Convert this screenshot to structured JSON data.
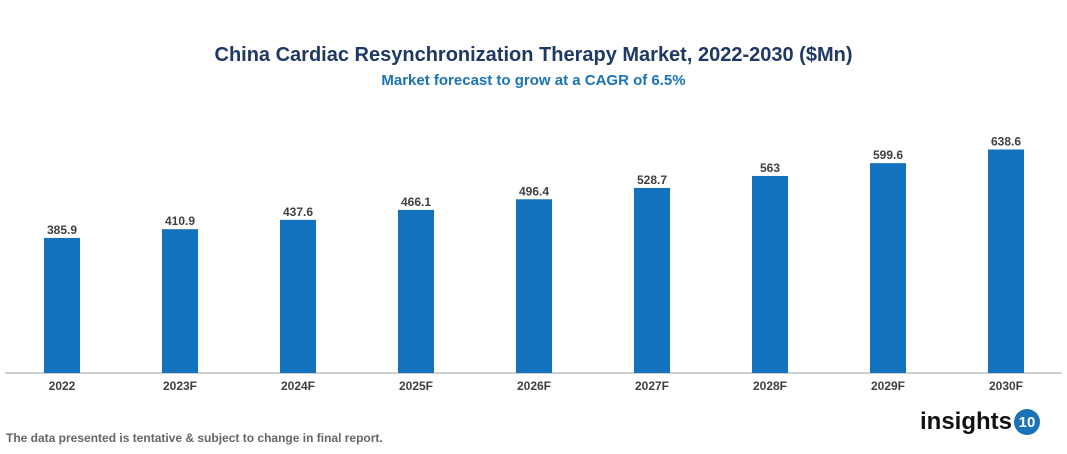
{
  "chart_data": {
    "type": "bar",
    "title": "China Cardiac Resynchronization Therapy Market, 2022-2030 ($Mn)",
    "subtitle": "Market forecast to grow at a CAGR of 6.5%",
    "categories": [
      "2022",
      "2023F",
      "2024F",
      "2025F",
      "2026F",
      "2027F",
      "2028F",
      "2029F",
      "2030F"
    ],
    "values": [
      385.9,
      410.9,
      437.6,
      466.1,
      496.4,
      528.7,
      563,
      599.6,
      638.6
    ],
    "ylim": [
      0,
      680
    ],
    "grid": false,
    "bar_color": "#1272bd"
  },
  "footer": {
    "note": "The data presented is tentative & subject to change in final report.",
    "logo_text": "insights",
    "logo_number": "10"
  }
}
